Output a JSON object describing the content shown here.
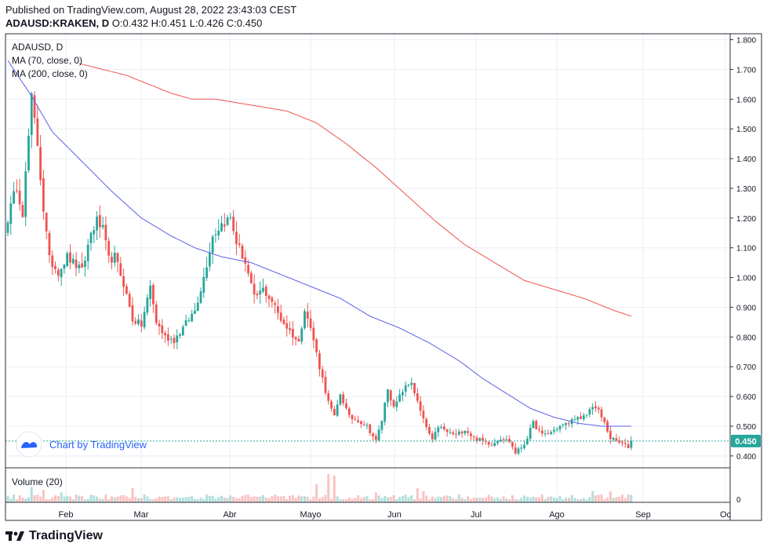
{
  "header": {
    "published": "Published on TradingView.com, August 28, 2022 23:43:03 CEST",
    "symbol_exchange": "ADAUSD:KRAKEN, D",
    "ohlc": "O:0.432 H:0.451 L:0.426 C:0.450"
  },
  "legend": {
    "symbol": "ADAUSD, D",
    "ma70": "MA (70, close, 0)",
    "ma200": "MA (200, close, 0)",
    "volume": "Volume (20)"
  },
  "watermark": "Chart by TradingView",
  "footer_brand": "TradingView",
  "colors": {
    "up": "#26a69a",
    "down": "#ef5350",
    "ma70": "#5b5fe6",
    "ma200": "#ef5350",
    "price_badge": "#26a69a",
    "grid": "#ebeef3",
    "axis_text": "#131722"
  },
  "chart_data": {
    "type": "candlestick",
    "title": "ADAUSD, D",
    "price_axis": {
      "ticks": [
        "1.800",
        "1.700",
        "1.600",
        "1.500",
        "1.400",
        "1.300",
        "1.200",
        "1.100",
        "1.000",
        "0.900",
        "0.800",
        "0.700",
        "0.600",
        "0.500",
        "0.400"
      ],
      "ylim": [
        0.36,
        1.82
      ]
    },
    "time_axis": {
      "ticks": [
        "Feb",
        "Mar",
        "Abr",
        "Mayo",
        "Jun",
        "Jul",
        "Ago",
        "Sep",
        "Oc"
      ]
    },
    "last_price": "0.450",
    "volume_axis_label": "0",
    "candle_count": 211,
    "candle_interval": "1D",
    "close_anchors": [
      [
        0,
        1.2
      ],
      [
        3,
        1.31
      ],
      [
        5,
        1.22
      ],
      [
        8,
        1.6
      ],
      [
        10,
        1.45
      ],
      [
        12,
        1.23
      ],
      [
        14,
        1.06
      ],
      [
        17,
        1.02
      ],
      [
        20,
        1.07
      ],
      [
        23,
        1.04
      ],
      [
        25,
        1.02
      ],
      [
        28,
        1.15
      ],
      [
        30,
        1.19
      ],
      [
        32,
        1.16
      ],
      [
        34,
        1.06
      ],
      [
        36,
        1.07
      ],
      [
        39,
        0.98
      ],
      [
        42,
        0.86
      ],
      [
        45,
        0.84
      ],
      [
        48,
        0.97
      ],
      [
        50,
        0.85
      ],
      [
        53,
        0.8
      ],
      [
        56,
        0.79
      ],
      [
        59,
        0.83
      ],
      [
        63,
        0.89
      ],
      [
        66,
        1.0
      ],
      [
        69,
        1.14
      ],
      [
        72,
        1.18
      ],
      [
        75,
        1.2
      ],
      [
        77,
        1.12
      ],
      [
        80,
        1.05
      ],
      [
        83,
        0.93
      ],
      [
        86,
        0.96
      ],
      [
        89,
        0.92
      ],
      [
        92,
        0.86
      ],
      [
        95,
        0.82
      ],
      [
        98,
        0.78
      ],
      [
        100,
        0.9
      ],
      [
        103,
        0.79
      ],
      [
        105,
        0.7
      ],
      [
        108,
        0.58
      ],
      [
        110,
        0.53
      ],
      [
        112,
        0.61
      ],
      [
        115,
        0.53
      ],
      [
        118,
        0.52
      ],
      [
        121,
        0.5
      ],
      [
        124,
        0.45
      ],
      [
        126,
        0.52
      ],
      [
        128,
        0.63
      ],
      [
        130,
        0.56
      ],
      [
        133,
        0.62
      ],
      [
        136,
        0.65
      ],
      [
        138,
        0.58
      ],
      [
        140,
        0.52
      ],
      [
        143,
        0.45
      ],
      [
        145,
        0.5
      ],
      [
        148,
        0.48
      ],
      [
        151,
        0.47
      ],
      [
        154,
        0.49
      ],
      [
        157,
        0.46
      ],
      [
        160,
        0.45
      ],
      [
        163,
        0.44
      ],
      [
        166,
        0.46
      ],
      [
        169,
        0.45
      ],
      [
        171,
        0.41
      ],
      [
        174,
        0.44
      ],
      [
        177,
        0.51
      ],
      [
        180,
        0.47
      ],
      [
        183,
        0.48
      ],
      [
        186,
        0.5
      ],
      [
        189,
        0.51
      ],
      [
        191,
        0.53
      ],
      [
        193,
        0.52
      ],
      [
        195,
        0.54
      ],
      [
        197,
        0.57
      ],
      [
        199,
        0.55
      ],
      [
        201,
        0.51
      ],
      [
        203,
        0.46
      ],
      [
        205,
        0.45
      ],
      [
        207,
        0.44
      ],
      [
        209,
        0.43
      ],
      [
        210,
        0.45
      ]
    ],
    "ma70": {
      "name": "MA (70, close, 0)",
      "points": [
        [
          0,
          1.73
        ],
        [
          8,
          1.61
        ],
        [
          15,
          1.49
        ],
        [
          25,
          1.39
        ],
        [
          35,
          1.29
        ],
        [
          45,
          1.2
        ],
        [
          55,
          1.14
        ],
        [
          63,
          1.1
        ],
        [
          72,
          1.07
        ],
        [
          82,
          1.05
        ],
        [
          92,
          1.01
        ],
        [
          102,
          0.97
        ],
        [
          112,
          0.93
        ],
        [
          122,
          0.87
        ],
        [
          132,
          0.83
        ],
        [
          142,
          0.78
        ],
        [
          152,
          0.72
        ],
        [
          160,
          0.66
        ],
        [
          168,
          0.61
        ],
        [
          176,
          0.56
        ],
        [
          184,
          0.53
        ],
        [
          192,
          0.51
        ],
        [
          200,
          0.5
        ],
        [
          210,
          0.5
        ]
      ]
    },
    "ma200": {
      "name": "MA (200, close, 0)",
      "points": [
        [
          24,
          1.72
        ],
        [
          40,
          1.68
        ],
        [
          55,
          1.62
        ],
        [
          62,
          1.6
        ],
        [
          70,
          1.6
        ],
        [
          82,
          1.58
        ],
        [
          94,
          1.56
        ],
        [
          104,
          1.52
        ],
        [
          114,
          1.45
        ],
        [
          124,
          1.37
        ],
        [
          134,
          1.28
        ],
        [
          144,
          1.19
        ],
        [
          154,
          1.11
        ],
        [
          164,
          1.05
        ],
        [
          174,
          0.99
        ],
        [
          184,
          0.96
        ],
        [
          194,
          0.93
        ],
        [
          204,
          0.89
        ],
        [
          210,
          0.87
        ]
      ]
    },
    "volume": {
      "name": "Volume (20)",
      "spikes": [
        [
          8,
          0.55
        ],
        [
          12,
          0.45
        ],
        [
          18,
          0.35
        ],
        [
          42,
          0.5
        ],
        [
          104,
          0.65
        ],
        [
          108,
          1.0
        ],
        [
          110,
          0.95
        ],
        [
          124,
          0.35
        ],
        [
          138,
          0.5
        ],
        [
          140,
          0.4
        ],
        [
          197,
          0.4
        ],
        [
          203,
          0.38
        ]
      ]
    }
  }
}
